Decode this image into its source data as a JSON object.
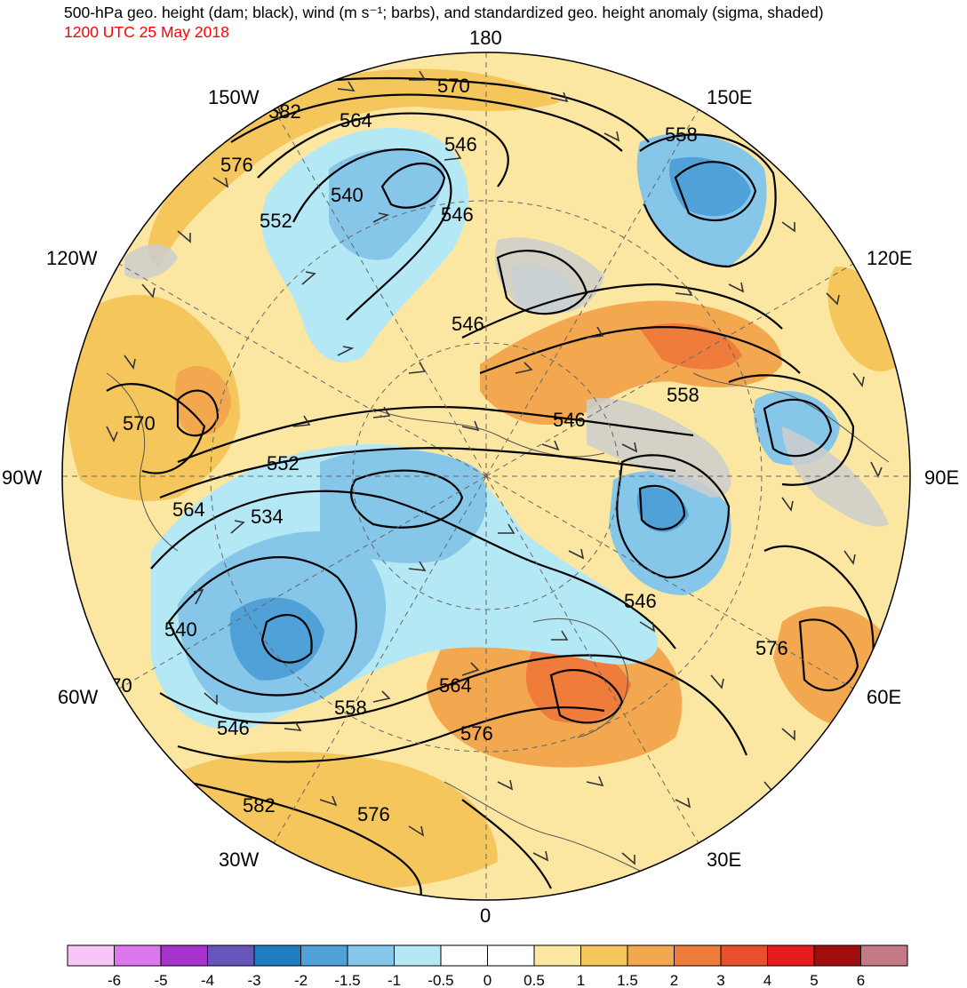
{
  "title": "500-hPa geo. height (dam; black), wind (m s⁻¹; barbs), and standardized geo. height anomaly (sigma, shaded)",
  "valid_time": "1200 UTC 25 May 2018",
  "longitude_labels": [
    "180",
    "150E",
    "120E",
    "90E",
    "60E",
    "30E",
    "0",
    "30W",
    "60W",
    "90W",
    "120W",
    "150W"
  ],
  "contour_labels": [
    "570",
    "582",
    "564",
    "546",
    "558",
    "576",
    "540",
    "552",
    "546",
    "546",
    "558",
    "546",
    "570",
    "552",
    "564",
    "534",
    "546",
    "540",
    "570",
    "546",
    "558",
    "564",
    "576",
    "576",
    "582",
    "576"
  ],
  "colorbar": {
    "ticks": [
      "-6",
      "-5",
      "-4",
      "-3",
      "-2",
      "-1.5",
      "-1",
      "-0.5",
      "0",
      "0.5",
      "1",
      "1.5",
      "2",
      "3",
      "4",
      "5",
      "6"
    ],
    "colors": [
      "#f7c6f7",
      "#dd77ee",
      "#a633cc",
      "#6655bb",
      "#1e7cc2",
      "#4fa1d8",
      "#86c6e8",
      "#b5e8f5",
      "#ffffff",
      "#ffffff",
      "#fbe7a1",
      "#f5c65c",
      "#f3a850",
      "#ef7c3b",
      "#e8502c",
      "#e61c1c",
      "#a00d0d",
      "#c47a86"
    ]
  },
  "palette": {
    "land_gray": "#cccccc",
    "coast": "#555555",
    "contour": "#000000"
  }
}
